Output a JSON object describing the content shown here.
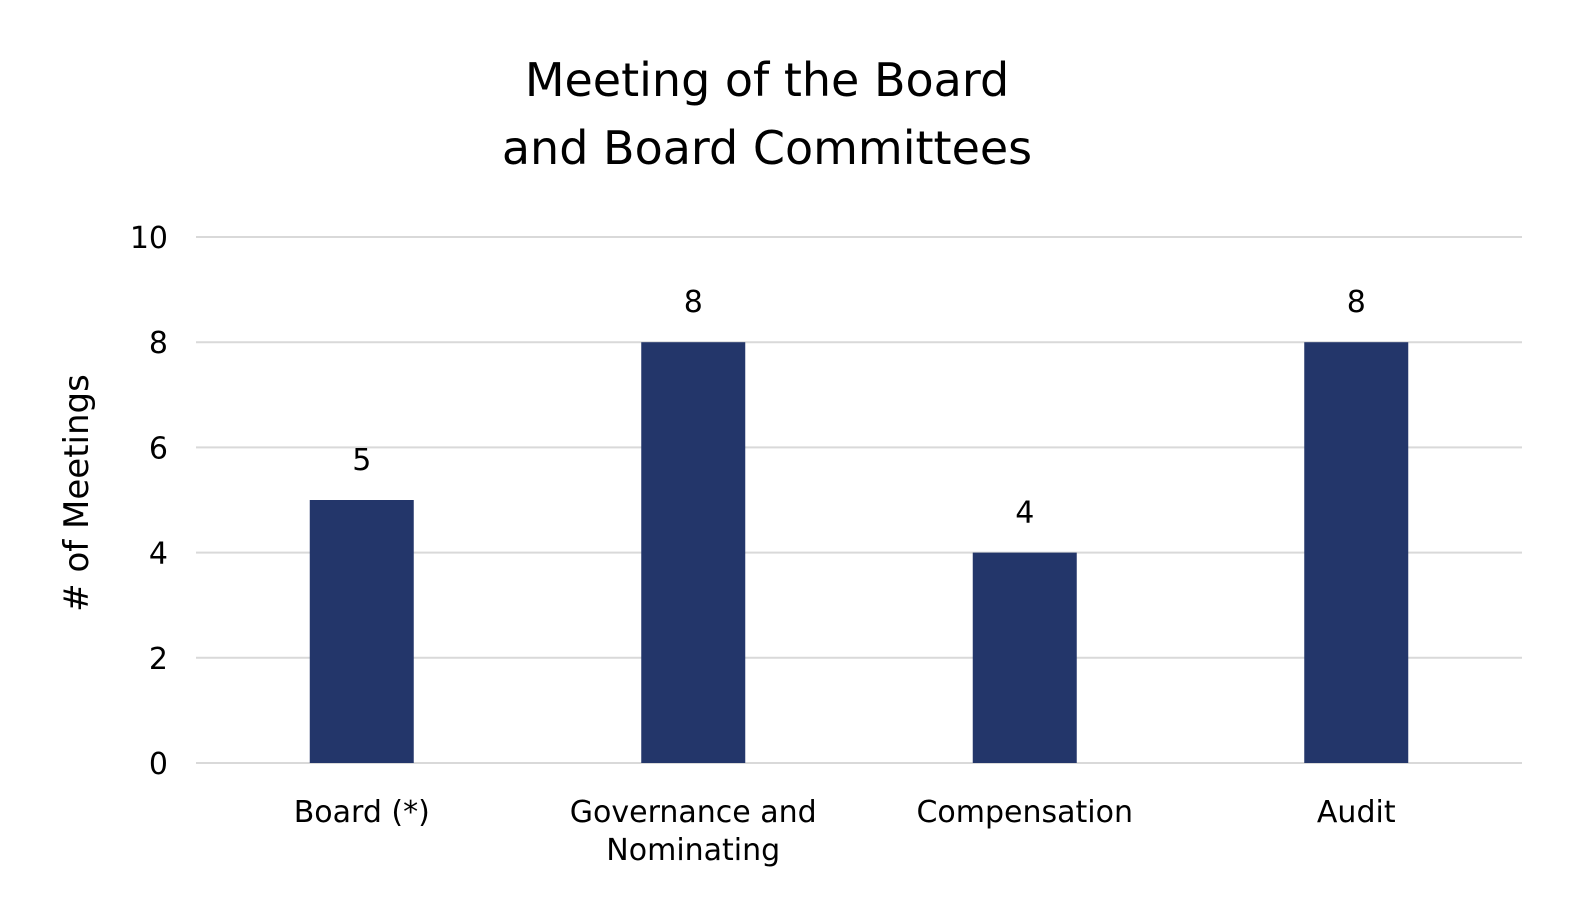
{
  "chart_data": {
    "type": "bar",
    "title": "Meeting of the Board and Board Committees",
    "title_lines": [
      "Meeting of the Board",
      "and Board Committees"
    ],
    "xlabel": "",
    "ylabel": "# of Meetings",
    "categories": [
      {
        "label": "Board (*)",
        "lines": [
          "Board (*)"
        ]
      },
      {
        "label": "Governance and Nominating",
        "lines": [
          "Governance and",
          "Nominating"
        ]
      },
      {
        "label": "Compensation",
        "lines": [
          "Compensation"
        ]
      },
      {
        "label": "Audit",
        "lines": [
          "Audit"
        ]
      }
    ],
    "values": [
      5,
      8,
      4,
      8
    ],
    "data_labels": [
      "5",
      "8",
      "4",
      "8"
    ],
    "ylim": [
      0,
      10
    ],
    "yticks": [
      "0",
      "2",
      "4",
      "6",
      "8",
      "10"
    ],
    "grid": true,
    "legend": "none",
    "bar_color": "#23366a",
    "grid_color": "#d9d9d9"
  }
}
